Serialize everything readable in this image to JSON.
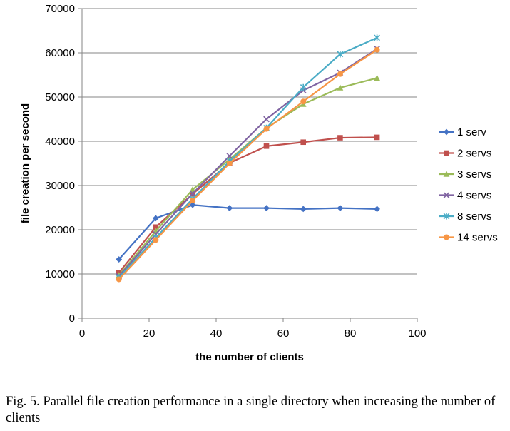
{
  "chart_data": {
    "type": "line",
    "xlabel": "the number of clients",
    "ylabel": "file creation per second",
    "xlim": [
      0,
      100
    ],
    "ylim": [
      0,
      70000
    ],
    "xticks": [
      0,
      20,
      40,
      60,
      80,
      100
    ],
    "yticks": [
      0,
      10000,
      20000,
      30000,
      40000,
      50000,
      60000,
      70000
    ],
    "x": [
      11,
      22,
      33,
      44,
      55,
      66,
      77,
      88
    ],
    "grid": "horizontal major gridlines",
    "legend_position": "right",
    "series": [
      {
        "name": "1 serv",
        "color": "#4472C4",
        "marker": "diamond",
        "values": [
          13300,
          22600,
          25600,
          24900,
          24900,
          24700,
          24900,
          24700
        ]
      },
      {
        "name": "2 servs",
        "color": "#C0504D",
        "marker": "square",
        "values": [
          10300,
          20600,
          28100,
          35100,
          38900,
          39800,
          40800,
          40900
        ]
      },
      {
        "name": "3 servs",
        "color": "#9BBB59",
        "marker": "triangle",
        "values": [
          9700,
          19700,
          29100,
          35900,
          43000,
          48400,
          52100,
          54300
        ]
      },
      {
        "name": "4 servs",
        "color": "#8064A2",
        "marker": "x",
        "values": [
          9500,
          19000,
          28200,
          36700,
          45000,
          51500,
          55500,
          60900
        ]
      },
      {
        "name": "8 servs",
        "color": "#4BACC6",
        "marker": "star",
        "values": [
          9200,
          18200,
          27000,
          35500,
          43000,
          52200,
          59700,
          63400
        ]
      },
      {
        "name": "14 servs",
        "color": "#F79646",
        "marker": "circle",
        "values": [
          8800,
          17700,
          26600,
          35000,
          42800,
          49000,
          55200,
          60700
        ]
      }
    ]
  },
  "caption": "Fig. 5.  Parallel file creation performance in a single directory when increasing the number of clients"
}
